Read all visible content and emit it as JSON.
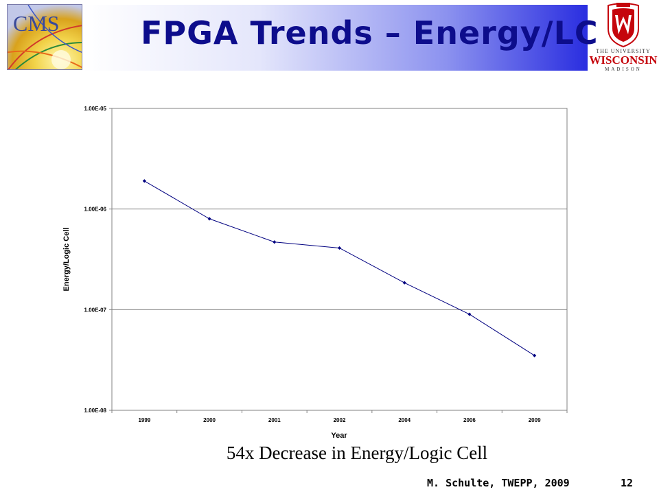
{
  "slide": {
    "title": "FPGA Trends – Energy/LC",
    "caption": "54x Decrease in Energy/Logic Cell",
    "footer_author": "M. Schulte, TWEPP, 2009",
    "page_number": "12"
  },
  "logos": {
    "left": {
      "text": "CMS",
      "icon": "cms-logo"
    },
    "right": {
      "icon": "uw-crest-logo",
      "line1": "THE UNIVERSITY",
      "line2": "WISCONSIN",
      "line3": "MADISON"
    }
  },
  "colors": {
    "title": "#0d0d8c",
    "banner_end": "#2a2ee0",
    "series_line": "#000080"
  },
  "chart_data": {
    "type": "line",
    "title": "",
    "xlabel": "Year",
    "ylabel": "Energy/Logic Cell",
    "y_scale": "log",
    "ylim": [
      1e-08,
      1e-05
    ],
    "y_ticks": [
      "1.00E-05",
      "1.00E-06",
      "1.00E-07",
      "1.00E-08"
    ],
    "categories": [
      "1999",
      "2000",
      "2001",
      "2002",
      "2004",
      "2006",
      "2009"
    ],
    "series": [
      {
        "values": [
          1.9e-06,
          8e-07,
          4.7e-07,
          4.1e-07,
          1.85e-07,
          9e-08,
          3.5e-08
        ]
      }
    ],
    "grid": "horizontal",
    "legend": "none"
  }
}
